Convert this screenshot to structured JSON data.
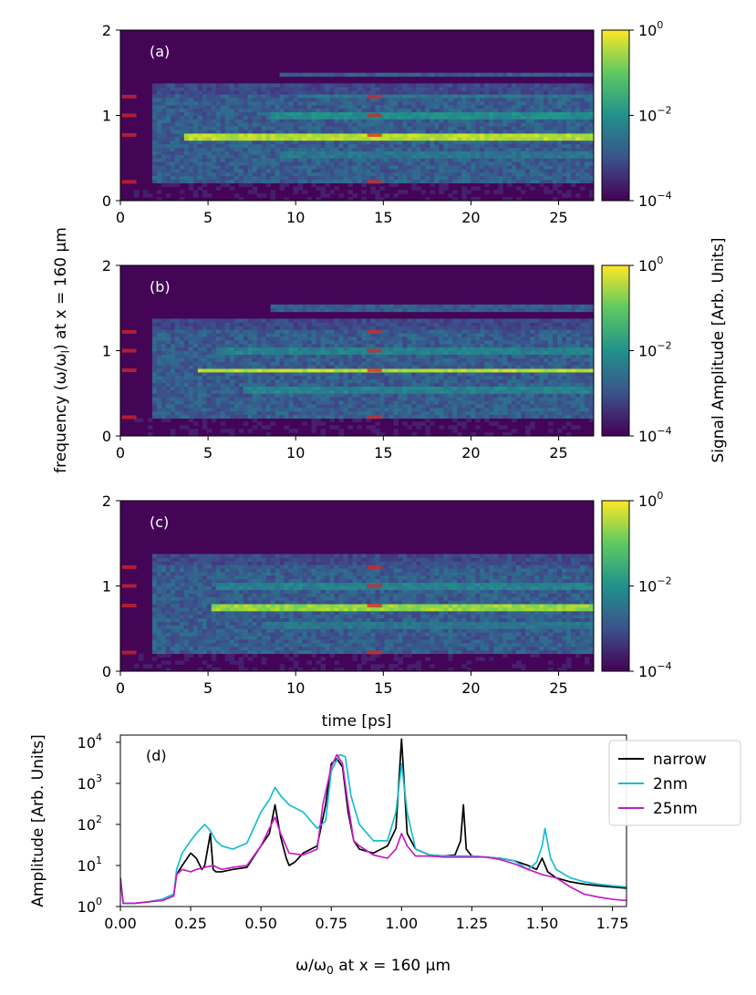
{
  "figure": {
    "ylabel_shared": "frequency (ω/ω",
    "ylabel_sub": "l",
    "ylabel_tail": ") at x = 160 µm",
    "xlabel_shared": "time [ps]",
    "colorbar_label": "Signal Amplitude [Arb. Units]"
  },
  "chart_data": [
    {
      "type": "heatmap",
      "panel_label": "(a)",
      "x_range": [
        0,
        27
      ],
      "y_range": [
        0,
        2
      ],
      "x_ticks": [
        "0",
        "5",
        "10",
        "15",
        "20",
        "25"
      ],
      "y_ticks": [
        "0",
        "1",
        "2"
      ],
      "colorbar": {
        "scale": "log",
        "min": "10^-4",
        "max": "10^0",
        "ticks": [
          "10",
          "10",
          "10"
        ],
        "tick_exponents": [
          "−4",
          "−2",
          "0"
        ]
      },
      "colormap": "viridis",
      "onset_time": 1.7,
      "bands": [
        {
          "freq": 0.75,
          "start": 3.7,
          "level": 0.95
        },
        {
          "freq": 1.0,
          "start": 8.5,
          "level": 0.55
        },
        {
          "freq": 0.55,
          "start": 9.0,
          "level": 0.45
        },
        {
          "freq": 1.22,
          "start": 10.0,
          "level": 0.45
        },
        {
          "freq": 1.48,
          "start": 9.0,
          "level": 0.35
        },
        {
          "freq": 0.3,
          "start": 12.0,
          "level": 0.3
        }
      ],
      "markers": [
        {
          "time": 0.5,
          "freqs": [
            0.22,
            0.77,
            1.0,
            1.22
          ]
        },
        {
          "time": 14.5,
          "freqs": [
            0.22,
            0.77,
            1.0,
            1.22
          ]
        }
      ]
    },
    {
      "type": "heatmap",
      "panel_label": "(b)",
      "x_range": [
        0,
        27
      ],
      "y_range": [
        0,
        2
      ],
      "x_ticks": [
        "0",
        "5",
        "10",
        "15",
        "20",
        "25"
      ],
      "y_ticks": [
        "0",
        "1",
        "2"
      ],
      "colorbar": {
        "scale": "log",
        "min": "10^-4",
        "max": "10^0",
        "ticks": [
          "10",
          "10",
          "10"
        ],
        "tick_exponents": [
          "−4",
          "−2",
          "0"
        ]
      },
      "colormap": "viridis",
      "onset_time": 1.7,
      "bands": [
        {
          "freq": 0.77,
          "start": 4.3,
          "level": 0.95
        },
        {
          "freq": 1.0,
          "start": 5.5,
          "level": 0.5
        },
        {
          "freq": 0.55,
          "start": 7.0,
          "level": 0.5
        },
        {
          "freq": 1.5,
          "start": 8.5,
          "level": 0.35
        },
        {
          "freq": 0.3,
          "start": 10.0,
          "level": 0.3
        }
      ],
      "markers": [
        {
          "time": 0.5,
          "freqs": [
            0.22,
            0.77,
            1.0,
            1.22
          ]
        },
        {
          "time": 14.5,
          "freqs": [
            0.22,
            0.77,
            1.0,
            1.22
          ]
        }
      ]
    },
    {
      "type": "heatmap",
      "panel_label": "(c)",
      "x_range": [
        0,
        27
      ],
      "y_range": [
        0,
        2
      ],
      "x_ticks": [
        "0",
        "5",
        "10",
        "15",
        "20",
        "25"
      ],
      "y_ticks": [
        "0",
        "1",
        "2"
      ],
      "colorbar": {
        "scale": "log",
        "min": "10^-4",
        "max": "10^0",
        "ticks": [
          "10",
          "10",
          "10"
        ],
        "tick_exponents": [
          "−4",
          "−2",
          "0"
        ]
      },
      "colormap": "viridis",
      "onset_time": 1.7,
      "bands": [
        {
          "freq": 0.76,
          "start": 5.3,
          "level": 0.9
        },
        {
          "freq": 1.0,
          "start": 5.5,
          "level": 0.5
        },
        {
          "freq": 0.55,
          "start": 8.0,
          "level": 0.45
        },
        {
          "freq": 0.3,
          "start": 10.0,
          "level": 0.28
        }
      ],
      "markers": [
        {
          "time": 0.5,
          "freqs": [
            0.22,
            0.77,
            1.0,
            1.22
          ]
        },
        {
          "time": 14.5,
          "freqs": [
            0.22,
            0.77,
            1.0,
            1.22
          ]
        }
      ]
    },
    {
      "type": "line",
      "panel_label": "(d)",
      "xlabel_pre": "ω/ω",
      "xlabel_sub": "0",
      "xlabel_post": " at x = 160 µm",
      "ylabel": "Amplitude [Arb. Units]",
      "yscale": "log",
      "xlim": [
        0,
        1.8
      ],
      "ylim": [
        1,
        15000
      ],
      "x_ticks": [
        "0.00",
        "0.25",
        "0.50",
        "0.75",
        "1.00",
        "1.25",
        "1.50",
        "1.75"
      ],
      "y_ticks": [
        "10",
        "10",
        "10",
        "10",
        "10"
      ],
      "y_tick_exponents": [
        "0",
        "1",
        "2",
        "3",
        "4"
      ],
      "legend": {
        "position": "top-right"
      },
      "series": [
        {
          "name": "narrow",
          "color": "#000000",
          "x": [
            0.0,
            0.01,
            0.05,
            0.1,
            0.15,
            0.19,
            0.2,
            0.22,
            0.25,
            0.27,
            0.29,
            0.3,
            0.32,
            0.33,
            0.34,
            0.36,
            0.4,
            0.45,
            0.5,
            0.53,
            0.55,
            0.57,
            0.59,
            0.6,
            0.62,
            0.65,
            0.7,
            0.73,
            0.75,
            0.77,
            0.79,
            0.81,
            0.83,
            0.85,
            0.9,
            0.95,
            0.98,
            1.0,
            1.02,
            1.05,
            1.1,
            1.15,
            1.19,
            1.21,
            1.22,
            1.23,
            1.25,
            1.3,
            1.35,
            1.4,
            1.45,
            1.48,
            1.5,
            1.52,
            1.55,
            1.6,
            1.65,
            1.7,
            1.75,
            1.8
          ],
          "y": [
            5,
            1.2,
            1.2,
            1.3,
            1.5,
            2,
            6,
            10,
            20,
            15,
            8,
            10,
            60,
            8,
            7,
            7,
            8,
            9,
            30,
            60,
            300,
            50,
            15,
            10,
            12,
            20,
            30,
            300,
            3000,
            4000,
            2500,
            200,
            40,
            25,
            20,
            30,
            80,
            12000,
            60,
            25,
            18,
            17,
            18,
            40,
            300,
            25,
            17,
            16,
            15,
            13,
            10,
            8,
            15,
            7,
            5,
            4,
            3.5,
            3.2,
            3,
            2.8
          ]
        },
        {
          "name": "2nm",
          "color": "#17becf",
          "x": [
            0.0,
            0.01,
            0.05,
            0.1,
            0.15,
            0.19,
            0.2,
            0.22,
            0.25,
            0.27,
            0.3,
            0.32,
            0.34,
            0.36,
            0.4,
            0.45,
            0.5,
            0.53,
            0.55,
            0.57,
            0.6,
            0.65,
            0.7,
            0.73,
            0.75,
            0.78,
            0.8,
            0.82,
            0.85,
            0.9,
            0.95,
            0.98,
            1.0,
            1.02,
            1.05,
            1.1,
            1.15,
            1.2,
            1.25,
            1.3,
            1.35,
            1.4,
            1.45,
            1.48,
            1.5,
            1.51,
            1.53,
            1.55,
            1.6,
            1.65,
            1.7,
            1.75,
            1.8
          ],
          "y": [
            5,
            1.2,
            1.2,
            1.3,
            1.5,
            2,
            8,
            20,
            40,
            60,
            100,
            70,
            40,
            30,
            25,
            35,
            200,
            400,
            800,
            500,
            300,
            200,
            80,
            120,
            2000,
            5000,
            4500,
            500,
            100,
            40,
            40,
            200,
            3000,
            200,
            25,
            18,
            17,
            17,
            17,
            16,
            15,
            13,
            8,
            12,
            30,
            80,
            15,
            8,
            5,
            4,
            3.5,
            3.2,
            3
          ]
        },
        {
          "name": "25nm",
          "color": "#c61bc6",
          "x": [
            0.0,
            0.01,
            0.05,
            0.1,
            0.15,
            0.19,
            0.2,
            0.22,
            0.25,
            0.27,
            0.3,
            0.33,
            0.36,
            0.4,
            0.45,
            0.5,
            0.53,
            0.55,
            0.57,
            0.6,
            0.65,
            0.7,
            0.72,
            0.75,
            0.77,
            0.79,
            0.81,
            0.83,
            0.85,
            0.9,
            0.95,
            0.98,
            1.0,
            1.02,
            1.05,
            1.1,
            1.15,
            1.2,
            1.25,
            1.3,
            1.35,
            1.4,
            1.45,
            1.5,
            1.55,
            1.6,
            1.65,
            1.7,
            1.75,
            1.8
          ],
          "y": [
            5,
            1.2,
            1.2,
            1.3,
            1.4,
            1.8,
            6,
            8,
            7,
            8,
            9,
            10,
            8,
            9,
            10,
            30,
            80,
            150,
            60,
            20,
            18,
            25,
            300,
            2500,
            5000,
            3000,
            300,
            40,
            30,
            18,
            15,
            25,
            60,
            30,
            17,
            17,
            16,
            16,
            16,
            16,
            14,
            11,
            8,
            6,
            5,
            3,
            2,
            1.7,
            1.5,
            1.4
          ]
        }
      ]
    }
  ]
}
